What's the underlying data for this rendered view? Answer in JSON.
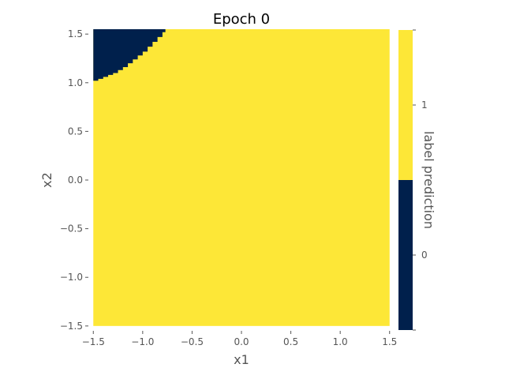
{
  "chart_data": {
    "type": "heatmap",
    "title": "Epoch 0",
    "xlabel": "x1",
    "ylabel": "x2",
    "xlim": [
      -1.55,
      1.55
    ],
    "ylim": [
      -1.55,
      1.55
    ],
    "xticks": [
      -1.5,
      -1.0,
      -0.5,
      0.0,
      0.5,
      1.0,
      1.5
    ],
    "xtick_labels": [
      "−1.5",
      "−1.0",
      "−0.5",
      "0.0",
      "0.5",
      "1.0",
      "1.5"
    ],
    "yticks": [
      -1.5,
      -1.0,
      -0.5,
      0.0,
      0.5,
      1.0,
      1.5
    ],
    "ytick_labels": [
      "−1.5",
      "−1.0",
      "−0.5",
      "0.0",
      "0.5",
      "1.0",
      "1.5"
    ],
    "grid": false,
    "background_class": 1,
    "region_class_0": {
      "description_boundary_x1": [
        -1.5,
        -1.45,
        -1.4,
        -1.35,
        -1.3,
        -1.25,
        -1.2,
        -1.15,
        -1.1,
        -1.05,
        -1.0,
        -0.95,
        -0.9,
        -0.85,
        -0.8,
        -0.77
      ],
      "description_boundary_x2": [
        1.02,
        1.04,
        1.06,
        1.08,
        1.1,
        1.13,
        1.16,
        1.2,
        1.24,
        1.28,
        1.32,
        1.37,
        1.42,
        1.47,
        1.52,
        1.55
      ]
    },
    "classes": [
      {
        "label": "0",
        "value": 0,
        "color": "#00204c"
      },
      {
        "label": "1",
        "value": 1,
        "color": "#fde737"
      }
    ],
    "colorbar": {
      "label": "label prediction",
      "ticks": [
        "0",
        "1"
      ]
    }
  }
}
